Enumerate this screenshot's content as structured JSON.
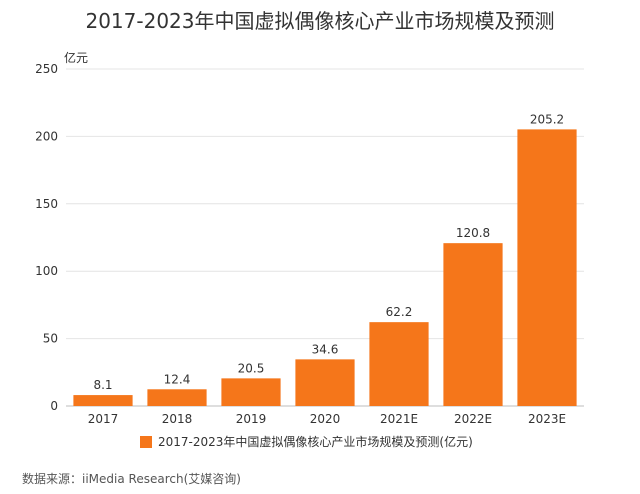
{
  "chart_data": {
    "type": "bar",
    "title": "2017-2023年中国虚拟偶像核心产业市场规模及预测",
    "ylabel": "亿元",
    "xlabel": "",
    "categories": [
      "2017",
      "2018",
      "2019",
      "2020",
      "2021E",
      "2022E",
      "2023E"
    ],
    "series": [
      {
        "name": "2017-2023年中国虚拟偶像核心产业市场规模及预测(亿元)",
        "values": [
          8.1,
          12.4,
          20.5,
          34.6,
          62.2,
          120.8,
          205.2
        ]
      }
    ],
    "ylim": [
      0,
      250
    ],
    "yticks": [
      0,
      50,
      100,
      150,
      200,
      250
    ],
    "grid": true,
    "legend_position": "bottom",
    "bar_color": "#F5761A",
    "source": "数据来源：iiMedia Research(艾媒咨询)"
  }
}
